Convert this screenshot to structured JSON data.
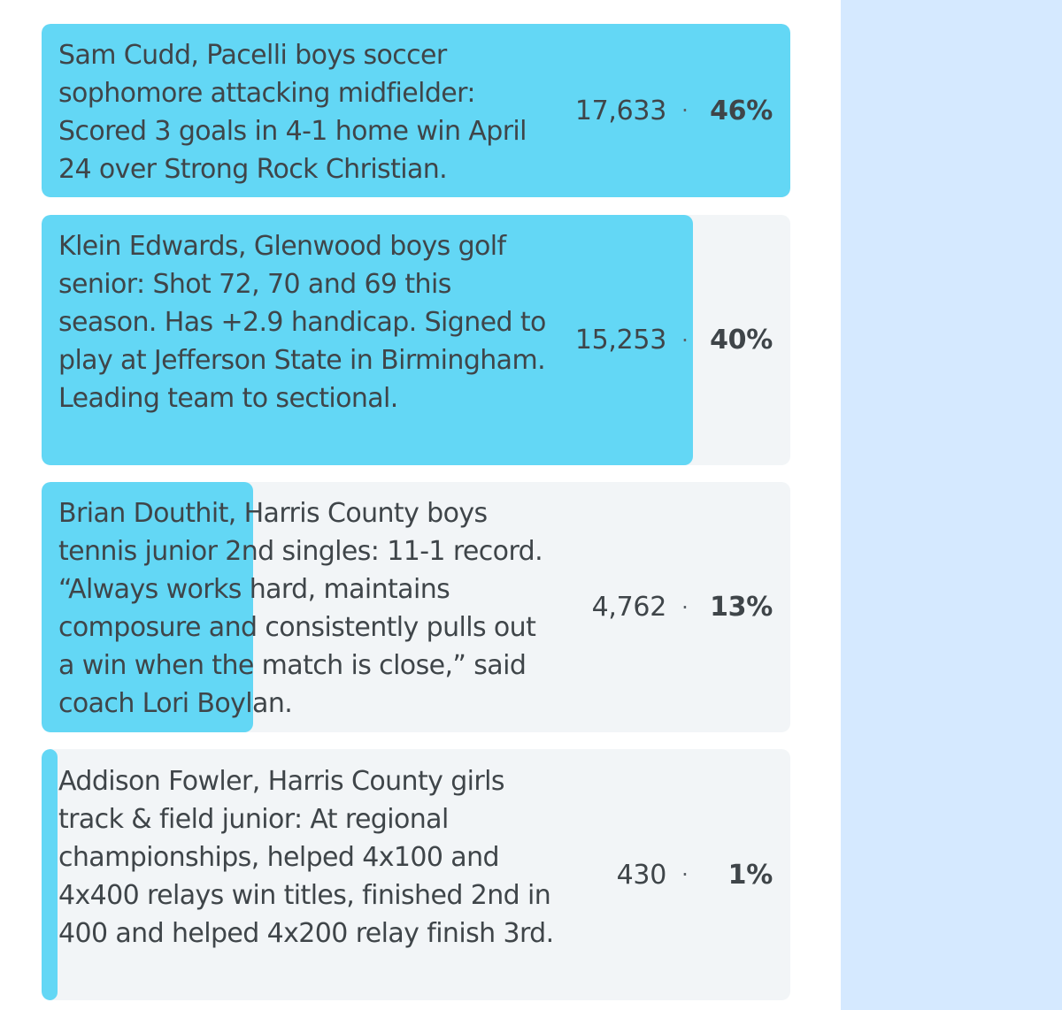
{
  "poll": {
    "options": [
      {
        "label": "Sam Cudd, Pacelli boys soccer sophomore attacking midfielder: Scored 3 goals in 4-1 home win April 24 over Strong Rock Christian.",
        "votes": "17,633",
        "separator": "·",
        "percent_label": "46%",
        "percent": 46
      },
      {
        "label": "Klein Edwards, Glenwood boys golf senior: Shot 72, 70 and 69 this season. Has +2.9 handicap. Signed to play at Jefferson State in Birmingham. Leading team to sectional.",
        "votes": "15,253",
        "separator": "·",
        "percent_label": "40%",
        "percent": 40
      },
      {
        "label": "Brian Douthit, Harris County boys tennis junior 2nd singles: 11-1 record. “Always works hard, maintains composure and consistently pulls out a win when the match is close,” said coach Lori Boylan.",
        "votes": "4,762",
        "separator": "·",
        "percent_label": "13%",
        "percent": 13
      },
      {
        "label": "Addison Fowler, Harris County girls track & field junior: At regional championships, helped 4x100 and 4x400 relays win titles, finished 2nd in 400 and helped 4x200 relay finish 3rd.",
        "votes": "430",
        "separator": "·",
        "percent_label": "1%",
        "percent": 1
      }
    ]
  },
  "colors": {
    "bar_fill": "#63d7f5",
    "option_background": "#f2f5f7",
    "side_panel": "#d5e9ff",
    "text": "#3f4549"
  }
}
